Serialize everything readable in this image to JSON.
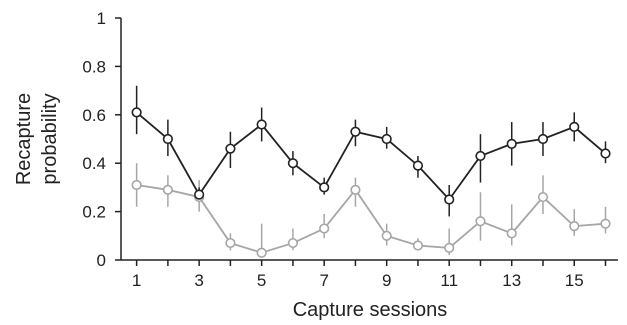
{
  "chart_data": {
    "type": "line",
    "xlabel": "Capture sessions",
    "ylabel": [
      "Recapture",
      "probability"
    ],
    "x": [
      1,
      2,
      3,
      4,
      5,
      6,
      7,
      8,
      9,
      10,
      11,
      12,
      13,
      14,
      15,
      16
    ],
    "xlim": [
      0.5,
      16.4
    ],
    "ylim": [
      0,
      1
    ],
    "x_ticks": [
      "1",
      "3",
      "5",
      "7",
      "9",
      "11",
      "13",
      "15"
    ],
    "y_ticks": [
      "0",
      "0.2",
      "0.4",
      "0.6",
      "0.8",
      "1"
    ],
    "grid": false,
    "legend": "none",
    "series": [
      {
        "color": "#222222",
        "values": [
          0.61,
          0.5,
          0.27,
          0.46,
          0.56,
          0.4,
          0.3,
          0.53,
          0.5,
          0.39,
          0.25,
          0.43,
          0.48,
          0.5,
          0.55,
          0.44
        ],
        "err_low": [
          0.52,
          0.43,
          0.25,
          0.38,
          0.49,
          0.35,
          0.27,
          0.47,
          0.46,
          0.34,
          0.18,
          0.32,
          0.39,
          0.43,
          0.49,
          0.4
        ],
        "err_high": [
          0.72,
          0.58,
          0.3,
          0.53,
          0.63,
          0.45,
          0.34,
          0.58,
          0.55,
          0.43,
          0.31,
          0.52,
          0.57,
          0.57,
          0.61,
          0.49
        ]
      },
      {
        "color": "#a6a6a6",
        "values": [
          0.31,
          0.29,
          0.26,
          0.07,
          0.03,
          0.07,
          0.13,
          0.29,
          0.1,
          0.06,
          0.05,
          0.16,
          0.11,
          0.26,
          0.14,
          0.15
        ],
        "err_low": [
          0.22,
          0.22,
          0.2,
          0.04,
          0.01,
          0.04,
          0.09,
          0.22,
          0.06,
          0.04,
          0.02,
          0.08,
          0.06,
          0.19,
          0.1,
          0.11
        ],
        "err_high": [
          0.4,
          0.35,
          0.33,
          0.11,
          0.15,
          0.13,
          0.19,
          0.34,
          0.15,
          0.09,
          0.13,
          0.28,
          0.23,
          0.35,
          0.21,
          0.22
        ]
      }
    ]
  }
}
